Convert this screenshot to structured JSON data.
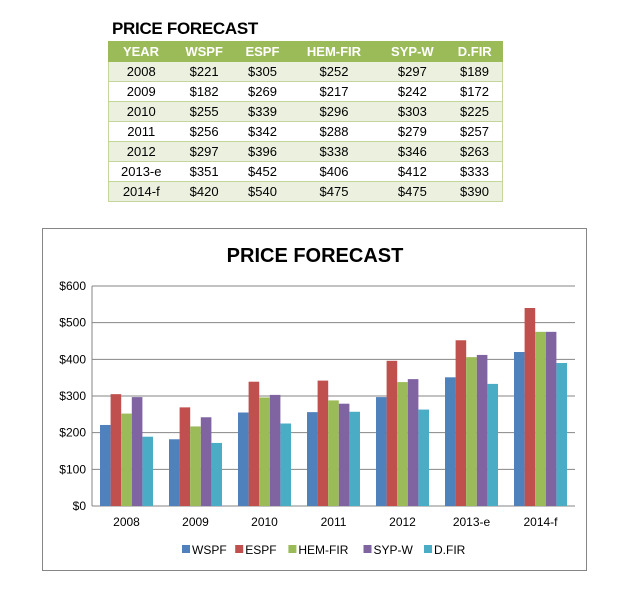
{
  "table": {
    "title": "PRICE FORECAST",
    "headers": [
      "YEAR",
      "WSPF",
      "ESPF",
      "HEM-FIR",
      "SYP-W",
      "D.FIR"
    ],
    "rows": [
      [
        "2008",
        "$221",
        "$305",
        "$252",
        "$297",
        "$189"
      ],
      [
        "2009",
        "$182",
        "$269",
        "$217",
        "$242",
        "$172"
      ],
      [
        "2010",
        "$255",
        "$339",
        "$296",
        "$303",
        "$225"
      ],
      [
        "2011",
        "$256",
        "$342",
        "$288",
        "$279",
        "$257"
      ],
      [
        "2012",
        "$297",
        "$396",
        "$338",
        "$346",
        "$263"
      ],
      [
        "2013-e",
        "$351",
        "$452",
        "$406",
        "$412",
        "$333"
      ],
      [
        "2014-f",
        "$420",
        "$540",
        "$475",
        "$475",
        "$390"
      ]
    ]
  },
  "chart_data": {
    "type": "bar",
    "title": "PRICE FORECAST",
    "categories": [
      "2008",
      "2009",
      "2010",
      "2011",
      "2012",
      "2013-e",
      "2014-f"
    ],
    "series": [
      {
        "name": "WSPF",
        "color": "#4f81bd",
        "values": [
          221,
          182,
          255,
          256,
          297,
          351,
          420
        ]
      },
      {
        "name": "ESPF",
        "color": "#c0504d",
        "values": [
          305,
          269,
          339,
          342,
          396,
          452,
          540
        ]
      },
      {
        "name": "HEM-FIR",
        "color": "#9bbb59",
        "values": [
          252,
          217,
          296,
          288,
          338,
          406,
          475
        ]
      },
      {
        "name": "SYP-W",
        "color": "#8064a2",
        "values": [
          297,
          242,
          303,
          279,
          346,
          412,
          475
        ]
      },
      {
        "name": "D.FIR",
        "color": "#4bacc6",
        "values": [
          189,
          172,
          225,
          257,
          263,
          333,
          390
        ]
      }
    ],
    "yticks": [
      "$0",
      "$100",
      "$200",
      "$300",
      "$400",
      "$500",
      "$600"
    ],
    "ylim": [
      0,
      600
    ],
    "grid": true,
    "legend": "bottom"
  }
}
